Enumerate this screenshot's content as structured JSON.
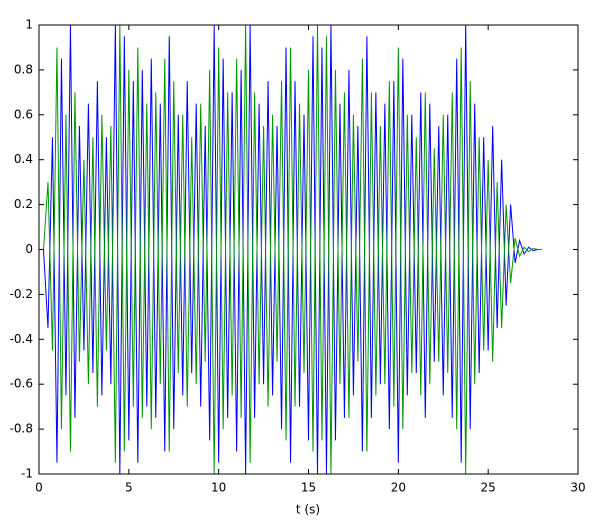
{
  "chart_data": {
    "type": "line",
    "x_label": "t (s)",
    "xlim": [
      0,
      30
    ],
    "ylim": [
      -1,
      1
    ],
    "xticks": [
      0,
      5,
      10,
      15,
      20,
      25,
      30
    ],
    "yticks": [
      -1,
      -0.8,
      -0.6,
      -0.4,
      -0.2,
      0,
      0.2,
      0.4,
      0.6,
      0.8,
      1
    ],
    "x": [
      0,
      0.25,
      0.5,
      0.75,
      1,
      1.25,
      1.5,
      1.75,
      2,
      2.25,
      2.5,
      2.75,
      3,
      3.25,
      3.5,
      3.75,
      4,
      4.25,
      4.5,
      4.75,
      5,
      5.25,
      5.5,
      5.75,
      6,
      6.25,
      6.5,
      6.75,
      7,
      7.25,
      7.5,
      7.75,
      8,
      8.25,
      8.5,
      8.75,
      9,
      9.25,
      9.5,
      9.75,
      10,
      10.25,
      10.5,
      10.75,
      11,
      11.25,
      11.5,
      11.75,
      12,
      12.25,
      12.5,
      12.75,
      13,
      13.25,
      13.5,
      13.75,
      14,
      14.25,
      14.5,
      14.75,
      15,
      15.25,
      15.5,
      15.75,
      16,
      16.25,
      16.5,
      16.75,
      17,
      17.25,
      17.5,
      17.75,
      18,
      18.25,
      18.5,
      18.75,
      19,
      19.25,
      19.5,
      19.75,
      20,
      20.25,
      20.5,
      20.75,
      21,
      21.25,
      21.5,
      21.75,
      22,
      22.25,
      22.5,
      22.75,
      23,
      23.25,
      23.5,
      23.75,
      24,
      24.25,
      24.5,
      24.75,
      25,
      25.25,
      25.5,
      25.75,
      26,
      26.25,
      26.5,
      26.75,
      27,
      27.25,
      27.5,
      27.75,
      28
    ],
    "series": [
      {
        "color": "#0000ff",
        "values": [
          0,
          0,
          -0.35,
          0.5,
          -0.95,
          0.85,
          -0.65,
          1,
          -0.75,
          0.55,
          -0.45,
          0.65,
          -0.55,
          0.75,
          -0.65,
          0.5,
          -0.6,
          1,
          -1,
          0.95,
          -0.85,
          0.75,
          -0.95,
          0.8,
          -0.7,
          0.85,
          -0.75,
          0.65,
          -0.9,
          0.95,
          -0.8,
          0.6,
          -0.65,
          0.75,
          -0.55,
          0.65,
          -0.7,
          0.55,
          -0.85,
          1,
          -0.95,
          0.85,
          -0.75,
          0.7,
          -0.9,
          0.8,
          -1,
          1,
          -0.75,
          0.65,
          -0.6,
          0.75,
          -0.65,
          0.55,
          -0.8,
          0.9,
          -0.95,
          0.75,
          -0.7,
          0.6,
          -0.85,
          0.95,
          -1,
          0.9,
          -1,
          1,
          -0.85,
          0.65,
          -0.75,
          0.8,
          -0.65,
          0.55,
          -0.9,
          0.95,
          -0.75,
          0.7,
          -0.6,
          0.65,
          -0.8,
          0.75,
          -0.95,
          0.85,
          -0.65,
          0.6,
          -0.55,
          0.7,
          -0.75,
          0.65,
          -0.5,
          0.55,
          -0.65,
          0.6,
          -0.75,
          0.85,
          -0.95,
          1,
          -0.8,
          0.65,
          -0.55,
          0.5,
          -0.45,
          0.55,
          -0.35,
          0.4,
          -0.25,
          0.2,
          -0.06,
          0.04,
          -0.02,
          0.01,
          -0.005,
          0,
          0
        ]
      },
      {
        "color": "#009900",
        "values": [
          0,
          0,
          0.3,
          -0.45,
          0.9,
          -0.8,
          0.6,
          -0.9,
          0.7,
          -0.5,
          0.4,
          -0.6,
          0.5,
          -0.7,
          0.6,
          -0.45,
          0.55,
          -0.95,
          1,
          -0.9,
          0.8,
          -0.7,
          0.9,
          -0.75,
          0.65,
          -0.8,
          0.7,
          -0.6,
          0.85,
          -0.9,
          0.75,
          -0.55,
          0.6,
          -0.7,
          0.5,
          -0.6,
          0.65,
          -0.5,
          0.8,
          -1,
          0.9,
          -0.8,
          0.7,
          -0.65,
          0.85,
          -0.75,
          1,
          -0.95,
          0.7,
          -0.6,
          0.55,
          -0.7,
          0.6,
          -0.5,
          0.75,
          -0.85,
          0.9,
          -0.7,
          0.65,
          -0.55,
          0.8,
          -0.9,
          1,
          -0.85,
          0.95,
          -1,
          0.8,
          -0.6,
          0.7,
          -0.75,
          0.6,
          -0.5,
          0.85,
          -0.9,
          0.7,
          -0.65,
          0.55,
          -0.6,
          0.75,
          -0.7,
          0.9,
          -0.8,
          0.6,
          -0.55,
          0.5,
          -0.65,
          0.7,
          -0.6,
          0.45,
          -0.5,
          0.6,
          -0.55,
          0.7,
          -0.8,
          0.9,
          -1,
          0.75,
          -0.6,
          0.5,
          -0.45,
          0.4,
          -0.5,
          0.3,
          -0.35,
          0.2,
          -0.15,
          0.05,
          -0.03,
          0.01,
          -0.01,
          0.005,
          0,
          0
        ]
      }
    ]
  }
}
